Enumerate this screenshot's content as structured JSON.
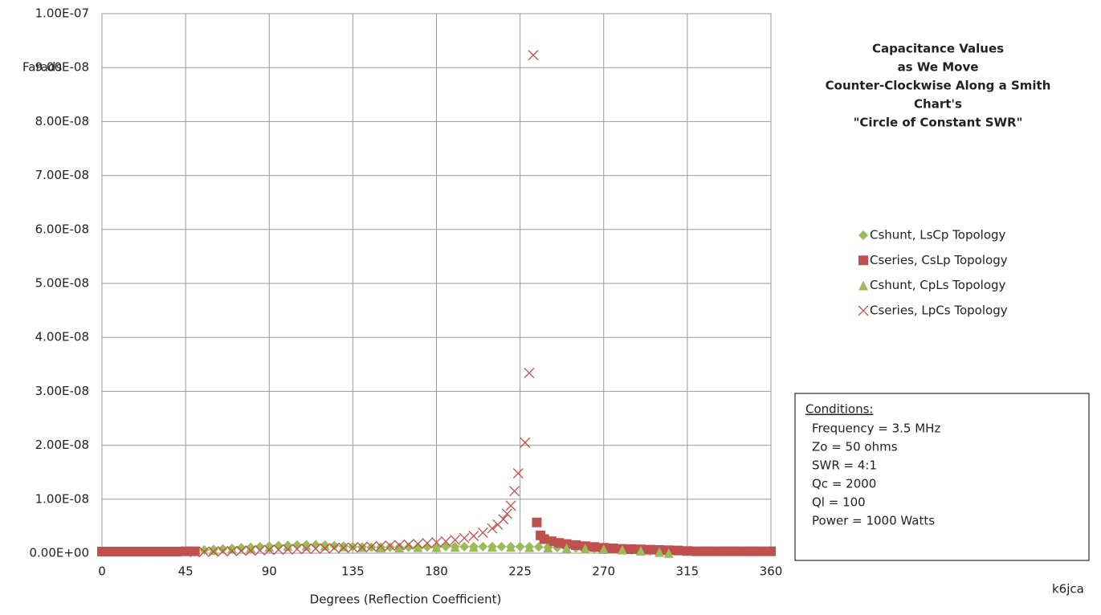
{
  "chart_data": {
    "type": "scatter",
    "title": [
      "Capacitance Values",
      "as  We Move",
      "Counter-Clockwise Along a Smith",
      "Chart's",
      "\"Circle of Constant SWR\""
    ],
    "x_label": "Degrees (Reflection Coefficient)",
    "y_label": "Farads",
    "xlim": [
      0,
      360
    ],
    "xticks": [
      0,
      45,
      90,
      135,
      180,
      225,
      270,
      315,
      360
    ],
    "ylim": [
      0,
      1e-07
    ],
    "yticks": [
      {
        "value": 0,
        "label": "0.00E+00"
      },
      {
        "value": 1e-08,
        "label": "1.00E-08"
      },
      {
        "value": 2e-08,
        "label": "2.00E-08"
      },
      {
        "value": 3e-08,
        "label": "3.00E-08"
      },
      {
        "value": 4e-08,
        "label": "4.00E-08"
      },
      {
        "value": 5e-08,
        "label": "5.00E-08"
      },
      {
        "value": 6e-08,
        "label": "6.00E-08"
      },
      {
        "value": 7e-08,
        "label": "7.00E-08"
      },
      {
        "value": 8e-08,
        "label": "8.00E-08"
      },
      {
        "value": 9e-08,
        "label": "9.00E-08"
      },
      {
        "value": 1e-07,
        "label": "1.00E-07"
      }
    ],
    "grid": true,
    "series": [
      {
        "name": "Cshunt, LsCp Topology",
        "color": "#9bbb59",
        "marker": "diamond",
        "x": [
          55,
          60,
          65,
          70,
          75,
          80,
          85,
          90,
          95,
          100,
          105,
          110,
          115,
          120,
          125,
          130,
          135,
          140,
          145,
          150,
          155,
          160,
          165,
          170,
          175,
          180,
          185,
          190,
          195,
          200,
          205,
          210,
          215,
          220,
          225,
          230,
          235,
          240,
          245,
          250,
          255,
          260,
          265,
          270,
          275,
          280,
          285,
          290,
          295,
          300,
          305
        ],
        "values": [
          6e-10,
          7e-10,
          8e-10,
          9e-10,
          1e-09,
          1.1e-09,
          1.2e-09,
          1.3e-09,
          1.4e-09,
          1.45e-09,
          1.5e-09,
          1.55e-09,
          1.55e-09,
          1.5e-09,
          1.4e-09,
          1.3e-09,
          1.2e-09,
          1.15e-09,
          1.1e-09,
          1.1e-09,
          1.1e-09,
          1.1e-09,
          1.1e-09,
          1.1e-09,
          1.15e-09,
          1.15e-09,
          1.2e-09,
          1.2e-09,
          1.2e-09,
          1.2e-09,
          1.2e-09,
          1.2e-09,
          1.2e-09,
          1.2e-09,
          1.2e-09,
          1.2e-09,
          1.15e-09,
          1.1e-09,
          1.05e-09,
          1e-09,
          9.5e-10,
          9e-10,
          8.5e-10,
          8e-10,
          7.5e-10,
          7e-10,
          6e-10,
          5e-10,
          4e-10,
          2.5e-10,
          5e-11
        ]
      },
      {
        "name": "Cseries, CsLp Topology",
        "color": "#c0504d",
        "marker": "square",
        "x": [
          0,
          5,
          10,
          15,
          20,
          25,
          30,
          35,
          40,
          45,
          50,
          234,
          236,
          238,
          242,
          246,
          250,
          255,
          260,
          265,
          270,
          275,
          280,
          285,
          290,
          295,
          300,
          305,
          310,
          315,
          320,
          325,
          330,
          335,
          340,
          345,
          350,
          355,
          360
        ],
        "values": [
          3e-10,
          3e-10,
          3e-10,
          3e-10,
          3e-10,
          3e-10,
          3e-10,
          3e-10,
          3e-10,
          3.5e-10,
          3.5e-10,
          5.7e-09,
          3.3e-09,
          2.6e-09,
          2.2e-09,
          1.9e-09,
          1.7e-09,
          1.5e-09,
          1.3e-09,
          1.15e-09,
          1e-09,
          9e-10,
          8e-10,
          7.5e-10,
          7e-10,
          6.5e-10,
          6e-10,
          5.5e-10,
          5e-10,
          4e-10,
          3.5e-10,
          3.5e-10,
          3.5e-10,
          3.5e-10,
          3.5e-10,
          3.5e-10,
          3.5e-10,
          3.5e-10,
          3.5e-10
        ]
      },
      {
        "name": "Cshunt, CpLs Topology",
        "color": "#9bbb59",
        "marker": "triangle",
        "x": [
          60,
          70,
          80,
          90,
          100,
          110,
          120,
          130,
          140,
          150,
          160,
          170,
          180,
          190,
          200,
          210,
          220,
          230,
          240,
          250,
          260,
          270,
          280,
          290,
          300,
          305
        ],
        "values": [
          6e-10,
          8e-10,
          1e-09,
          1.15e-09,
          1.3e-09,
          1.4e-09,
          1.4e-09,
          1.25e-09,
          1.1e-09,
          1.05e-09,
          1.05e-09,
          1.1e-09,
          1.1e-09,
          1.15e-09,
          1.15e-09,
          1.15e-09,
          1.15e-09,
          1.1e-09,
          1.05e-09,
          9.5e-10,
          8.5e-10,
          7.5e-10,
          6.5e-10,
          4.5e-10,
          2e-10,
          2e-11
        ]
      },
      {
        "name": "Cseries, LpCs Topology",
        "color": "#c0504d",
        "marker": "x",
        "x": [
          50,
          55,
          60,
          65,
          70,
          75,
          80,
          85,
          90,
          95,
          100,
          105,
          110,
          115,
          120,
          125,
          130,
          135,
          140,
          145,
          150,
          155,
          160,
          165,
          170,
          175,
          180,
          185,
          190,
          195,
          200,
          205,
          210,
          213,
          216,
          218,
          220,
          222,
          224,
          227.7,
          229.9,
          232.1
        ],
        "values": [
          2e-10,
          2.5e-10,
          3e-10,
          3.5e-10,
          4e-10,
          4.5e-10,
          5e-10,
          5.5e-10,
          6e-10,
          6.5e-10,
          7e-10,
          7.5e-10,
          8e-10,
          8.5e-10,
          9e-10,
          9.5e-10,
          1e-09,
          1.05e-09,
          1.1e-09,
          1.2e-09,
          1.3e-09,
          1.4e-09,
          1.5e-09,
          1.6e-09,
          1.7e-09,
          1.85e-09,
          2e-09,
          2.2e-09,
          2.45e-09,
          2.8e-09,
          3.2e-09,
          3.8e-09,
          4.6e-09,
          5.3e-09,
          6.3e-09,
          7.3e-09,
          8.8e-09,
          1.15e-08,
          1.48e-08,
          2.05e-08,
          3.34e-08,
          9.23e-08
        ]
      }
    ],
    "conditions": {
      "heading": "Conditions:",
      "lines": [
        "Frequency = 3.5 MHz",
        "Zo = 50 ohms",
        "SWR = 4:1",
        "Qc = 2000",
        "Ql =  100",
        "Power = 1000 Watts"
      ]
    },
    "credit": "k6jca"
  }
}
